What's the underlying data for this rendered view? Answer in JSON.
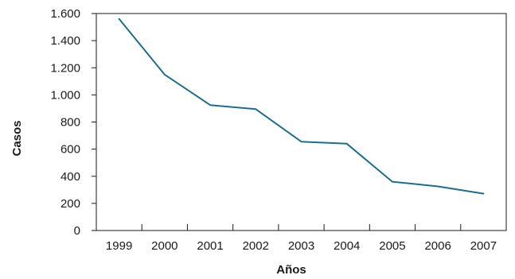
{
  "chart_data": {
    "type": "line",
    "title": "",
    "xlabel": "Años",
    "ylabel": "Casos",
    "categories": [
      "1999",
      "2000",
      "2001",
      "2002",
      "2003",
      "2004",
      "2005",
      "2006",
      "2007"
    ],
    "series": [
      {
        "values": [
          1560,
          1150,
          925,
          895,
          655,
          640,
          360,
          325,
          272
        ]
      }
    ],
    "ylim": [
      0,
      1600
    ],
    "yticks": [
      0,
      200,
      400,
      600,
      800,
      1000,
      1200,
      1400,
      1600
    ],
    "ytick_labels": [
      "0",
      "200",
      "400",
      "600",
      "800",
      "1.000",
      "1.200",
      "1.400",
      "1.600"
    ],
    "grid": false,
    "legend": "none",
    "colors": {
      "line": "#1a6e8e",
      "axis": "#1a1a1a"
    }
  }
}
